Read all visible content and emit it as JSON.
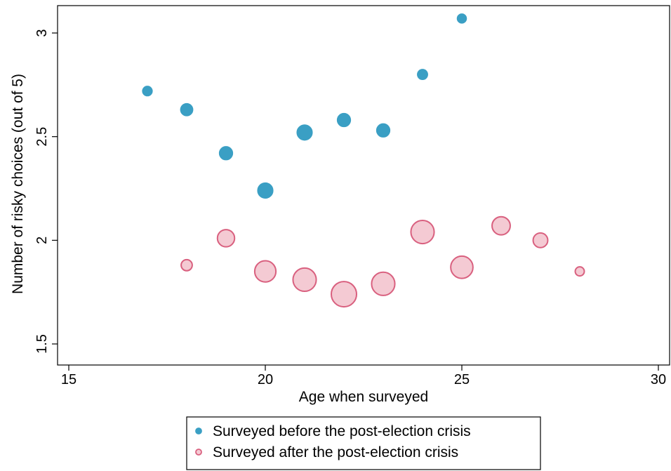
{
  "chart_data": {
    "type": "scatter",
    "title": "",
    "xlabel": "Age when surveyed",
    "ylabel": "Number of risky choices (out of 5)",
    "xlim": [
      15,
      30
    ],
    "ylim": [
      1.5,
      3.1
    ],
    "xticks": [
      15,
      20,
      25,
      30
    ],
    "xtick_labels": [
      "15",
      "20",
      "25",
      "30"
    ],
    "yticks": [
      1.5,
      2,
      2.5,
      3
    ],
    "ytick_labels": [
      "1.5",
      "2",
      "2.5",
      "3"
    ],
    "grid": false,
    "legend_position": "bottom-center",
    "series": [
      {
        "name": "Surveyed before the post-election crisis",
        "color": "#3a9fc4",
        "stroke": "#3a9fc4",
        "points": [
          {
            "x": 17,
            "y": 2.72,
            "size": 1
          },
          {
            "x": 18,
            "y": 2.63,
            "size": 1.25
          },
          {
            "x": 19,
            "y": 2.42,
            "size": 1.35
          },
          {
            "x": 20,
            "y": 2.24,
            "size": 1.55
          },
          {
            "x": 21,
            "y": 2.52,
            "size": 1.55
          },
          {
            "x": 22,
            "y": 2.58,
            "size": 1.35
          },
          {
            "x": 23,
            "y": 2.53,
            "size": 1.35
          },
          {
            "x": 24,
            "y": 2.8,
            "size": 1.05
          },
          {
            "x": 25,
            "y": 3.07,
            "size": 0.95
          }
        ]
      },
      {
        "name": "Surveyed after the post-election crisis",
        "color": "#f4cad3",
        "stroke": "#d9607f",
        "points": [
          {
            "x": 18,
            "y": 1.88,
            "size": 1.1
          },
          {
            "x": 19,
            "y": 2.01,
            "size": 1.7
          },
          {
            "x": 20,
            "y": 1.85,
            "size": 2.1
          },
          {
            "x": 21,
            "y": 1.81,
            "size": 2.3
          },
          {
            "x": 22,
            "y": 1.74,
            "size": 2.5
          },
          {
            "x": 23,
            "y": 1.79,
            "size": 2.3
          },
          {
            "x": 24,
            "y": 2.04,
            "size": 2.3
          },
          {
            "x": 25,
            "y": 1.87,
            "size": 2.2
          },
          {
            "x": 26,
            "y": 2.07,
            "size": 1.8
          },
          {
            "x": 27,
            "y": 2.0,
            "size": 1.45
          },
          {
            "x": 28,
            "y": 1.85,
            "size": 0.9
          }
        ]
      }
    ]
  }
}
